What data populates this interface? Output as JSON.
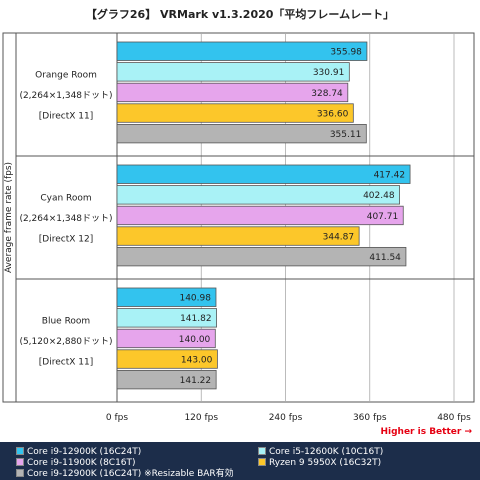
{
  "title": "【グラフ26】 VRMark v1.3.2020「平均フレームレート」",
  "higher_note": "Higher is Better →",
  "chart_data": {
    "type": "bar",
    "orientation": "horizontal",
    "ylabel": "Average frame rate (fps)",
    "xlim": [
      0,
      480
    ],
    "xticks": [
      0,
      120,
      240,
      360,
      480
    ],
    "xtick_labels": [
      "0 fps",
      "120 fps",
      "240 fps",
      "360 fps",
      "480 fps"
    ],
    "grid": true,
    "legend_position": "bottom",
    "groups": [
      {
        "lines": [
          "Orange Room",
          "(2,264×1,348ドット)",
          "[DirectX 11]"
        ]
      },
      {
        "lines": [
          "Cyan Room",
          "(2,264×1,348ドット)",
          "[DirectX 12]"
        ]
      },
      {
        "lines": [
          "Blue Room",
          "(5,120×2,880ドット)",
          "[DirectX 11]"
        ]
      }
    ],
    "series": [
      {
        "name": "Core i9-12900K (16C24T)",
        "color": "#33c3ee",
        "values": [
          355.98,
          417.42,
          140.98
        ],
        "labels": [
          "355.98",
          "417.42",
          "140.98"
        ]
      },
      {
        "name": "Core i5-12600K (10C16T)",
        "color": "#a9f2f6",
        "values": [
          330.91,
          402.48,
          141.82
        ],
        "labels": [
          "330.91",
          "402.48",
          "141.82"
        ]
      },
      {
        "name": "Core i9-11900K (8C16T)",
        "color": "#e6a5ec",
        "values": [
          328.74,
          407.71,
          140.0
        ],
        "labels": [
          "328.74",
          "407.71",
          "140.00"
        ]
      },
      {
        "name": "Ryzen 9 5950X (16C32T)",
        "color": "#fcc72a",
        "values": [
          336.6,
          344.87,
          143.0
        ],
        "labels": [
          "336.60",
          "344.87",
          "143.00"
        ]
      },
      {
        "name": "Core i9-12900K (16C24T) ※Resizable BAR有効",
        "color": "#b4b4b4",
        "values": [
          355.11,
          411.54,
          141.22
        ],
        "labels": [
          "355.11",
          "411.54",
          "141.22"
        ]
      }
    ]
  }
}
